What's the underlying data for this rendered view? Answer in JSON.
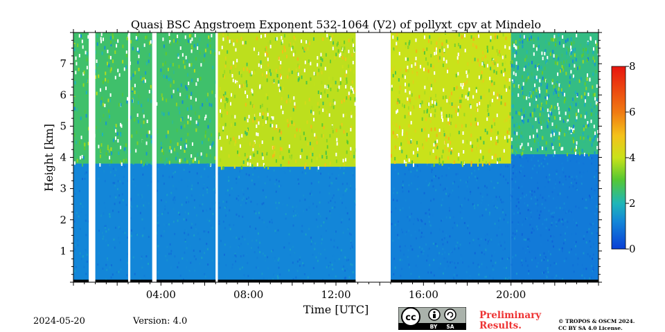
{
  "chart_data": {
    "type": "heatmap",
    "title": "Quasi BSC Angstroem Exponent 532-1064 (V2) of pollyxt_cpv at Mindelo",
    "xlabel": "Time [UTC]",
    "ylabel": "Height [km]",
    "xlim_hours": [
      0,
      24
    ],
    "ylim_km": [
      0,
      8
    ],
    "x_ticks": [
      {
        "value": 4,
        "label": "04:00"
      },
      {
        "value": 8,
        "label": "08:00"
      },
      {
        "value": 12,
        "label": "12:00"
      },
      {
        "value": 16,
        "label": "16:00"
      },
      {
        "value": 20,
        "label": "20:00"
      }
    ],
    "y_ticks": [
      {
        "value": 1,
        "label": "1"
      },
      {
        "value": 2,
        "label": "2"
      },
      {
        "value": 3,
        "label": "3"
      },
      {
        "value": 4,
        "label": "4"
      },
      {
        "value": 5,
        "label": "5"
      },
      {
        "value": 6,
        "label": "6"
      },
      {
        "value": 7,
        "label": "7"
      }
    ],
    "colorbar": {
      "min": 0,
      "max": 8,
      "ticks": [
        {
          "value": 0,
          "label": "0"
        },
        {
          "value": 2,
          "label": "2"
        },
        {
          "value": 4,
          "label": "4"
        },
        {
          "value": 6,
          "label": "6"
        },
        {
          "value": 8,
          "label": "8"
        }
      ],
      "colormap": "jet"
    },
    "data_gaps_hours": [
      [
        0.7,
        1.0
      ],
      [
        2.5,
        2.6
      ],
      [
        3.6,
        3.8
      ],
      [
        6.5,
        6.6
      ],
      [
        12.9,
        14.5
      ]
    ],
    "regions": [
      {
        "x": [
          0,
          6.5
        ],
        "y": [
          0,
          3.8
        ],
        "value": 1.2
      },
      {
        "x": [
          0,
          6.5
        ],
        "y": [
          3.8,
          8
        ],
        "value": 2.6
      },
      {
        "x": [
          6.6,
          12.9
        ],
        "y": [
          0,
          3.7
        ],
        "value": 1.2
      },
      {
        "x": [
          6.6,
          12.9
        ],
        "y": [
          3.7,
          8
        ],
        "value": 3.9
      },
      {
        "x": [
          14.5,
          20.0
        ],
        "y": [
          0,
          3.8
        ],
        "value": 1.1
      },
      {
        "x": [
          14.5,
          20.0
        ],
        "y": [
          3.8,
          8
        ],
        "value": 4.0
      },
      {
        "x": [
          20.0,
          24
        ],
        "y": [
          0,
          4.1
        ],
        "value": 1.0
      },
      {
        "x": [
          20.0,
          24
        ],
        "y": [
          4.1,
          8
        ],
        "value": 2.4
      }
    ],
    "colors": {
      "aerosol_layer": "#1f6fd0",
      "upper_mixed": "#3ac0a0",
      "free_troposphere_high": "#d8e640",
      "near_surface": "#000000"
    }
  },
  "footer": {
    "date": "2024-05-20",
    "version": "Version: 4.0",
    "preliminary_line1": "Preliminary",
    "preliminary_line2": "Results.",
    "copyright_line1": "© TROPOS & OSCM 2024.",
    "copyright_line2": "CC BY SA 4.0 License.",
    "cc_labels": [
      "cc",
      "BY",
      "SA"
    ]
  }
}
